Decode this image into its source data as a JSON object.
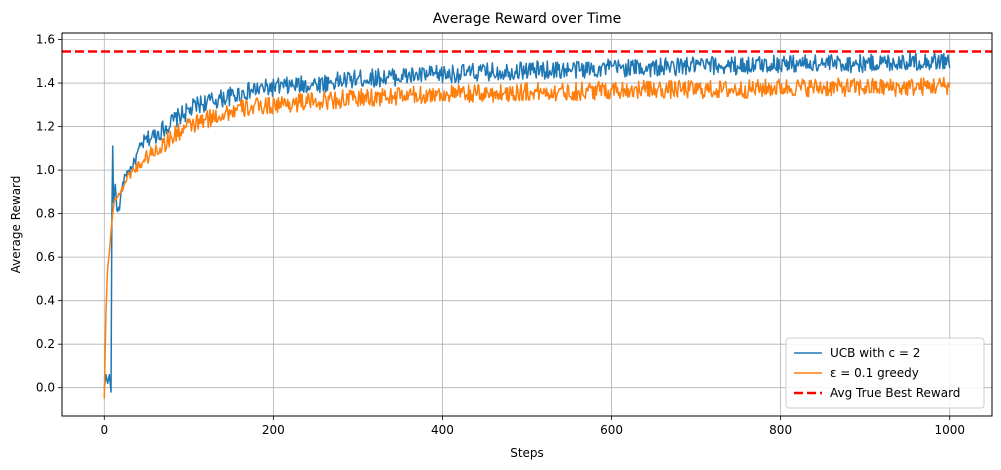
{
  "chart_data": {
    "type": "line",
    "title": "Average Reward over Time",
    "xlabel": "Steps",
    "ylabel": "Average Reward",
    "xlim": [
      -50,
      1050
    ],
    "ylim": [
      -0.13,
      1.63
    ],
    "xticks": [
      0,
      200,
      400,
      600,
      800,
      1000
    ],
    "yticks": [
      0.0,
      0.2,
      0.4,
      0.6,
      0.8,
      1.0,
      1.2,
      1.4,
      1.6
    ],
    "xtick_labels": [
      "0",
      "200",
      "400",
      "600",
      "800",
      "1000"
    ],
    "ytick_labels": [
      "0.0",
      "0.2",
      "0.4",
      "0.6",
      "0.8",
      "1.0",
      "1.2",
      "1.4",
      "1.6"
    ],
    "grid": true,
    "legend_position": "lower-right",
    "series": [
      {
        "name": "UCB with c = 2",
        "color": "#1f77b4",
        "style": "solid",
        "x": [
          0,
          2,
          4,
          6,
          8,
          9,
          10,
          11,
          13,
          15,
          18,
          20,
          25,
          30,
          35,
          40,
          45,
          50,
          60,
          70,
          80,
          90,
          100,
          110,
          120,
          140,
          160,
          180,
          200,
          230,
          260,
          300,
          350,
          400,
          450,
          500,
          550,
          600,
          650,
          700,
          750,
          800,
          850,
          900,
          950,
          1000
        ],
        "values": [
          0.0,
          0.06,
          0.02,
          0.06,
          -0.02,
          0.8,
          1.11,
          0.85,
          0.93,
          0.82,
          0.82,
          0.9,
          0.98,
          1.0,
          1.03,
          1.08,
          1.12,
          1.14,
          1.16,
          1.19,
          1.22,
          1.25,
          1.27,
          1.3,
          1.31,
          1.33,
          1.35,
          1.37,
          1.38,
          1.39,
          1.4,
          1.42,
          1.43,
          1.44,
          1.45,
          1.46,
          1.46,
          1.47,
          1.47,
          1.48,
          1.48,
          1.49,
          1.49,
          1.49,
          1.5,
          1.5
        ]
      },
      {
        "name": "ε = 0.1 greedy",
        "color": "#ff7f0e",
        "style": "solid",
        "x": [
          0,
          2,
          4,
          6,
          8,
          10,
          12,
          15,
          20,
          25,
          30,
          40,
          50,
          60,
          70,
          80,
          90,
          100,
          120,
          140,
          160,
          180,
          200,
          230,
          260,
          300,
          350,
          400,
          450,
          500,
          550,
          600,
          650,
          700,
          750,
          800,
          850,
          900,
          950,
          1000
        ],
        "values": [
          -0.05,
          0.35,
          0.55,
          0.62,
          0.72,
          0.8,
          0.86,
          0.88,
          0.9,
          0.95,
          0.98,
          1.02,
          1.06,
          1.09,
          1.12,
          1.15,
          1.18,
          1.2,
          1.23,
          1.26,
          1.28,
          1.29,
          1.3,
          1.31,
          1.32,
          1.33,
          1.34,
          1.35,
          1.35,
          1.36,
          1.36,
          1.37,
          1.37,
          1.37,
          1.37,
          1.38,
          1.38,
          1.38,
          1.38,
          1.39
        ]
      },
      {
        "name": "Avg True Best Reward",
        "color": "#ff0000",
        "style": "dashed",
        "x": [
          -50,
          1050
        ],
        "values": [
          1.545,
          1.545
        ]
      }
    ]
  }
}
